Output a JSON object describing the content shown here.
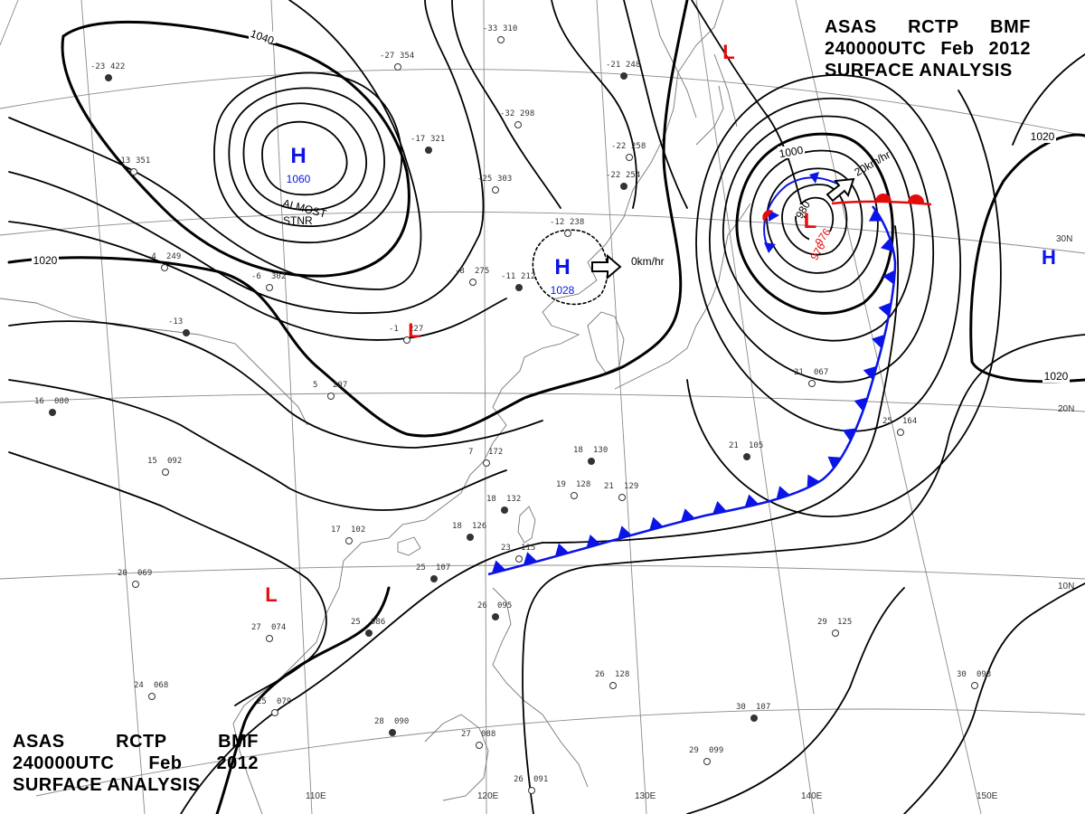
{
  "header": {
    "line1": [
      "ASAS",
      "RCTP",
      "BMF"
    ],
    "line2": [
      "240000UTC",
      "Feb",
      "2012"
    ],
    "line3": "SURFACE ANALYSIS"
  },
  "colors": {
    "high": "#0b14e6",
    "low": "#e60b0b",
    "isobar": "#000000",
    "grid": "#888888",
    "coast": "#777777"
  },
  "meridian_labels": [
    "110E",
    "120E",
    "130E",
    "140E",
    "150E"
  ],
  "parallel_labels": [
    "30N",
    "20N",
    "10N"
  ],
  "isobar_labels": [
    "1040",
    "1020",
    "1000",
    "980",
    "976",
    "1020",
    "1020"
  ],
  "systems": [
    {
      "type": "H",
      "pressure": "1060"
    },
    {
      "type": "H",
      "pressure": "1028"
    },
    {
      "type": "H",
      "pressure": ""
    },
    {
      "type": "L",
      "pressure": "976"
    },
    {
      "type": "L",
      "pressure": ""
    },
    {
      "type": "L",
      "pressure": ""
    },
    {
      "type": "L",
      "pressure": ""
    }
  ],
  "motion_labels": [
    "ALMOST",
    "STNR",
    "0km/hr",
    "20km/hr"
  ],
  "stations": [
    {
      "t": "-23",
      "p": "422"
    },
    {
      "t": "-27",
      "p": "354"
    },
    {
      "t": "-33",
      "p": "310"
    },
    {
      "t": "-21",
      "p": "248"
    },
    {
      "t": "-32",
      "p": "298"
    },
    {
      "t": "-13",
      "p": "351"
    },
    {
      "t": "-17",
      "p": "321"
    },
    {
      "t": "-25",
      "p": "303"
    },
    {
      "t": "-22",
      "p": "258"
    },
    {
      "t": "-22",
      "p": "254"
    },
    {
      "t": "-12",
      "p": "238"
    },
    {
      "t": "-8",
      "p": "275"
    },
    {
      "t": "-11",
      "p": "212"
    },
    {
      "t": "-6",
      "p": "302"
    },
    {
      "t": "-4",
      "p": "249"
    },
    {
      "t": "-13",
      "p": ""
    },
    {
      "t": "-1",
      "p": "227"
    },
    {
      "t": "5",
      "p": "207"
    },
    {
      "t": "16",
      "p": "080"
    },
    {
      "t": "15",
      "p": "092"
    },
    {
      "t": "7",
      "p": "172"
    },
    {
      "t": "18",
      "p": "130"
    },
    {
      "t": "19",
      "p": "128"
    },
    {
      "t": "21",
      "p": "129"
    },
    {
      "t": "18",
      "p": "132"
    },
    {
      "t": "17",
      "p": "102"
    },
    {
      "t": "20",
      "p": "069"
    },
    {
      "t": "25",
      "p": "107"
    },
    {
      "t": "23",
      "p": "115"
    },
    {
      "t": "27",
      "p": "074"
    },
    {
      "t": "25",
      "p": "086"
    },
    {
      "t": "24",
      "p": "068"
    },
    {
      "t": "25",
      "p": "079"
    },
    {
      "t": "28",
      "p": "090"
    },
    {
      "t": "27",
      "p": "088"
    },
    {
      "t": "26",
      "p": "091"
    },
    {
      "t": "26",
      "p": "095"
    },
    {
      "t": "26",
      "p": "128"
    },
    {
      "t": "29",
      "p": "125"
    },
    {
      "t": "30",
      "p": "107"
    },
    {
      "t": "29",
      "p": "099"
    },
    {
      "t": "30",
      "p": "093"
    },
    {
      "t": "21",
      "p": "105"
    },
    {
      "t": "21",
      "p": "067"
    },
    {
      "t": "25",
      "p": "164"
    },
    {
      "t": "18",
      "p": "126"
    }
  ]
}
